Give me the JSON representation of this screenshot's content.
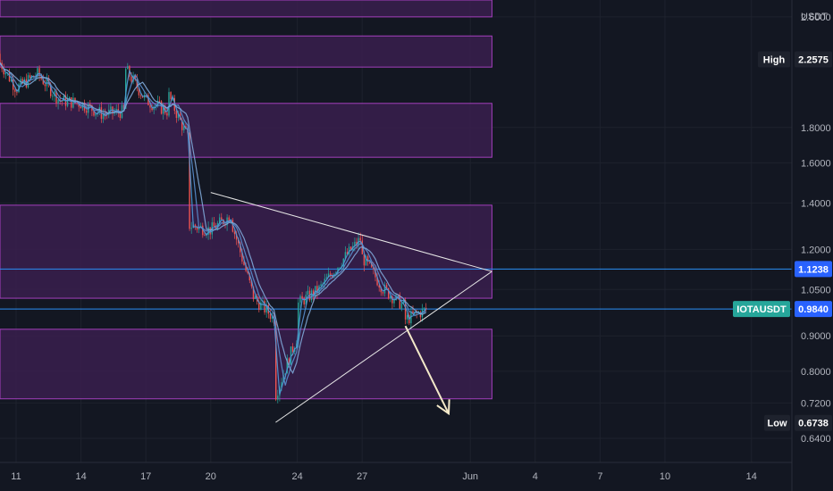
{
  "chart_data": {
    "type": "candlestick",
    "symbol": "IOTAUSDT",
    "currency": "USDT",
    "y_scale": "log",
    "ylim": [
      0.605,
      2.75
    ],
    "y_ticks": [
      "2.6000",
      "1.8000",
      "1.6000",
      "1.4000",
      "1.2000",
      "1.0500",
      "0.9000",
      "0.8000",
      "0.7200",
      "0.6400"
    ],
    "x_ticks": [
      "11",
      "14",
      "17",
      "20",
      "24",
      "27",
      "Jun",
      "4",
      "7",
      "10",
      "14"
    ],
    "price_path": [
      {
        "x": "2021-05-10",
        "y": 2.3
      },
      {
        "x": "2021-05-11",
        "y": 2.05
      },
      {
        "x": "2021-05-12",
        "y": 2.15
      },
      {
        "x": "2021-05-13",
        "y": 1.97
      },
      {
        "x": "2021-05-14",
        "y": 1.95
      },
      {
        "x": "2021-05-15",
        "y": 1.88
      },
      {
        "x": "2021-05-16",
        "y": 1.9
      },
      {
        "x": "2021-05-16",
        "y": 2.2
      },
      {
        "x": "2021-05-17",
        "y": 1.97
      },
      {
        "x": "2021-05-18",
        "y": 1.9
      },
      {
        "x": "2021-05-18",
        "y": 2.02
      },
      {
        "x": "2021-05-19",
        "y": 1.72
      },
      {
        "x": "2021-05-19",
        "y": 1.3
      },
      {
        "x": "2021-05-20",
        "y": 1.28
      },
      {
        "x": "2021-05-21",
        "y": 1.35
      },
      {
        "x": "2021-05-21",
        "y": 1.3
      },
      {
        "x": "2021-05-22",
        "y": 1.02
      },
      {
        "x": "2021-05-23",
        "y": 0.95
      },
      {
        "x": "2021-05-23",
        "y": 0.74
      },
      {
        "x": "2021-05-24",
        "y": 0.9
      },
      {
        "x": "2021-05-24",
        "y": 1.0
      },
      {
        "x": "2021-05-25",
        "y": 1.05
      },
      {
        "x": "2021-05-26",
        "y": 1.15
      },
      {
        "x": "2021-05-27",
        "y": 1.25
      },
      {
        "x": "2021-05-27",
        "y": 1.17
      },
      {
        "x": "2021-05-28",
        "y": 1.05
      },
      {
        "x": "2021-05-29",
        "y": 0.99
      },
      {
        "x": "2021-05-29",
        "y": 0.95
      },
      {
        "x": "2021-05-30",
        "y": 0.984
      }
    ],
    "zones": [
      {
        "x1": "2021-05-10",
        "x2": "2021-06-02",
        "y_low": 2.6,
        "y_high": 2.75
      },
      {
        "x1": "2021-05-10",
        "x2": "2021-06-02",
        "y_low": 2.2,
        "y_high": 2.44
      },
      {
        "x1": "2021-05-10",
        "x2": "2021-06-02",
        "y_low": 1.63,
        "y_high": 1.95
      },
      {
        "x1": "2021-05-10",
        "x2": "2021-06-02",
        "y_low": 1.02,
        "y_high": 1.39
      },
      {
        "x1": "2021-05-10",
        "x2": "2021-06-02",
        "y_low": 0.73,
        "y_high": 0.92
      }
    ],
    "trendlines": [
      {
        "x1": "2021-05-20",
        "y1": 1.45,
        "x2": "2021-06-02",
        "y2": 1.115
      },
      {
        "x1": "2021-05-23",
        "y1": 0.675,
        "x2": "2021-06-02",
        "y2": 1.115
      }
    ],
    "arrow": {
      "x1": "2021-05-29",
      "y1": 0.93,
      "x2": "2021-05-31",
      "y2": 0.695
    },
    "hlines": [
      {
        "price": 1.1238,
        "color": "#2a8ff7"
      },
      {
        "price": 0.984,
        "color": "#2a8ff7"
      }
    ],
    "labels": {
      "high": {
        "label": "High",
        "value": "2.2575",
        "price": 2.2575
      },
      "current": {
        "label": "IOTAUSDT",
        "value": "0.9840",
        "price": 0.984
      },
      "line": {
        "value": "1.1238",
        "price": 1.1238
      },
      "low": {
        "label": "Low",
        "value": "0.6738",
        "price": 0.6738
      }
    },
    "colors": {
      "background": "#131722",
      "zone_fill": "#3a1e4d",
      "zone_border": "#a43fbd",
      "hline": "#2a8ff7",
      "tag_blue": "#2962ff",
      "tag_teal": "#26a69a",
      "tag_dark": "#1e222d",
      "ma": [
        "#4f9bd9",
        "#5a8fcf",
        "#7fa8d8"
      ]
    }
  }
}
